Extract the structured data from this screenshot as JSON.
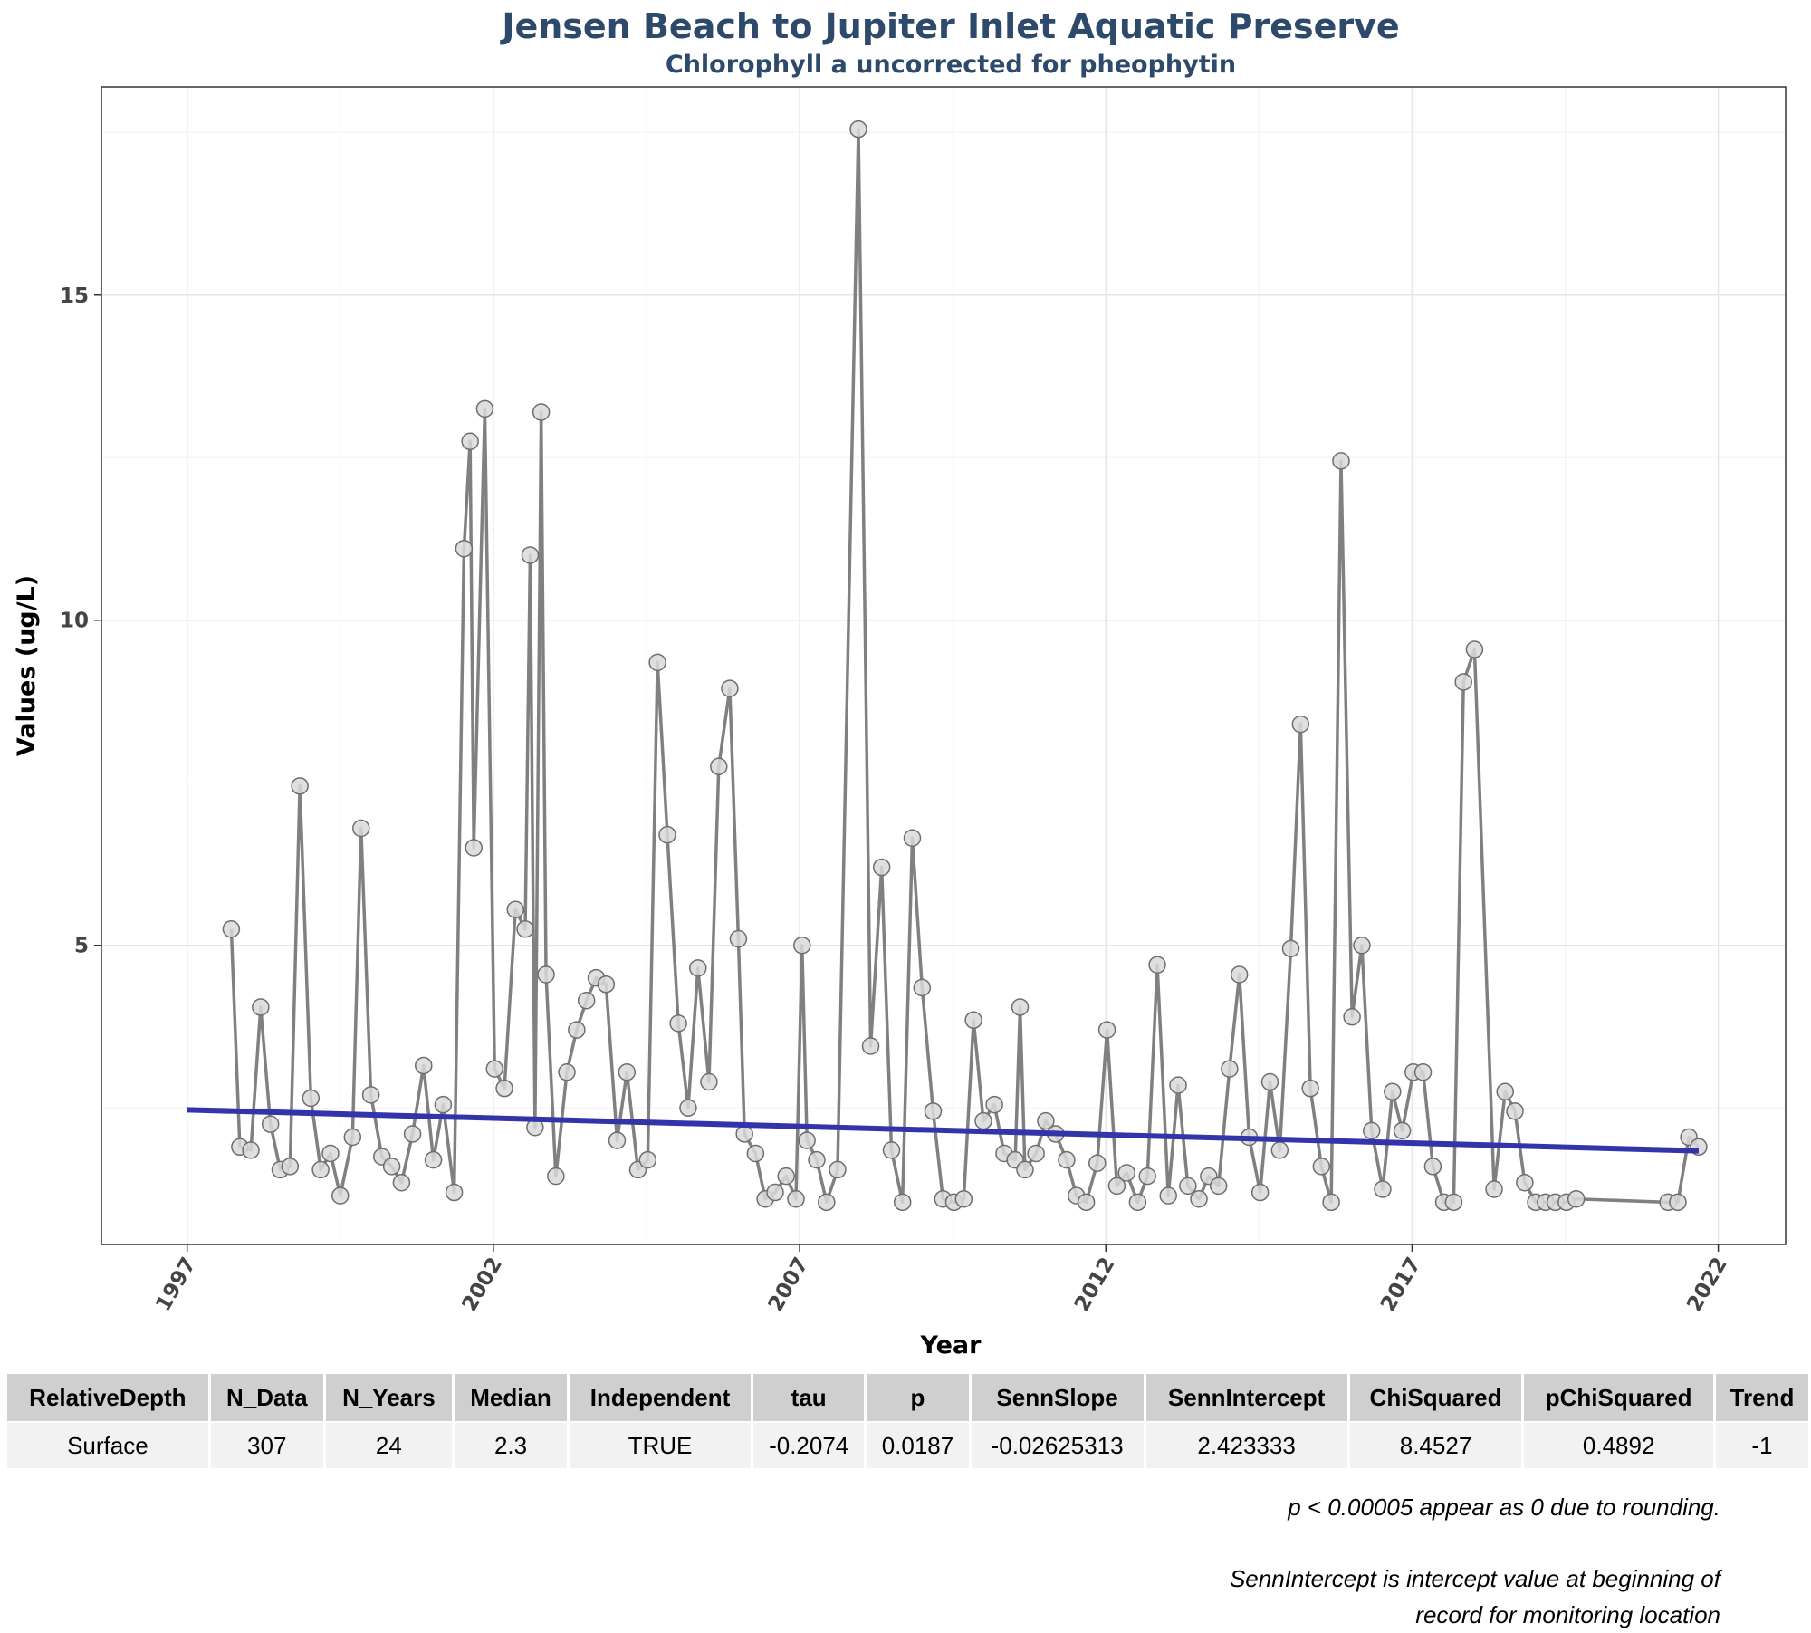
{
  "chart_data": {
    "type": "line",
    "title": "Jensen Beach to Jupiter Inlet Aquatic Preserve",
    "subtitle": "Chlorophyll a uncorrected for pheophytin",
    "xlabel": "Year",
    "ylabel": "Values (ug/L)",
    "xlim": [
      1995.6,
      2023.1
    ],
    "ylim": [
      0.4,
      18.2
    ],
    "x_ticks": [
      1997,
      2002,
      2007,
      2012,
      2017,
      2022
    ],
    "y_ticks": [
      5,
      10,
      15
    ],
    "grid": true,
    "legend": "none",
    "series": [
      {
        "type": "line-points",
        "color": "#808080",
        "point_fill": "#d9d9d9",
        "points": [
          [
            1997.72,
            5.25
          ],
          [
            1997.86,
            1.9
          ],
          [
            1998.04,
            1.85
          ],
          [
            1998.2,
            4.05
          ],
          [
            1998.36,
            2.25
          ],
          [
            1998.52,
            1.55
          ],
          [
            1998.68,
            1.6
          ],
          [
            1998.84,
            7.45
          ],
          [
            1999.02,
            2.65
          ],
          [
            1999.18,
            1.55
          ],
          [
            1999.34,
            1.8
          ],
          [
            1999.5,
            1.15
          ],
          [
            1999.7,
            2.05
          ],
          [
            1999.84,
            6.8
          ],
          [
            2000.0,
            2.7
          ],
          [
            2000.18,
            1.75
          ],
          [
            2000.34,
            1.6
          ],
          [
            2000.5,
            1.35
          ],
          [
            2000.68,
            2.1
          ],
          [
            2000.86,
            3.15
          ],
          [
            2001.02,
            1.7
          ],
          [
            2001.18,
            2.55
          ],
          [
            2001.36,
            1.2
          ],
          [
            2001.52,
            11.1
          ],
          [
            2001.62,
            12.75
          ],
          [
            2001.68,
            6.5
          ],
          [
            2001.86,
            13.25
          ],
          [
            2002.02,
            3.1
          ],
          [
            2002.18,
            2.8
          ],
          [
            2002.36,
            5.55
          ],
          [
            2002.52,
            5.25
          ],
          [
            2002.6,
            11.0
          ],
          [
            2002.68,
            2.2
          ],
          [
            2002.78,
            13.2
          ],
          [
            2002.86,
            4.55
          ],
          [
            2003.02,
            1.45
          ],
          [
            2003.2,
            3.05
          ],
          [
            2003.36,
            3.7
          ],
          [
            2003.52,
            4.15
          ],
          [
            2003.68,
            4.5
          ],
          [
            2003.84,
            4.4
          ],
          [
            2004.02,
            2.0
          ],
          [
            2004.18,
            3.05
          ],
          [
            2004.36,
            1.55
          ],
          [
            2004.52,
            1.7
          ],
          [
            2004.68,
            9.35
          ],
          [
            2004.84,
            6.7
          ],
          [
            2005.02,
            3.8
          ],
          [
            2005.18,
            2.5
          ],
          [
            2005.34,
            4.65
          ],
          [
            2005.52,
            2.9
          ],
          [
            2005.68,
            7.75
          ],
          [
            2005.86,
            8.95
          ],
          [
            2006.0,
            5.1
          ],
          [
            2006.1,
            2.1
          ],
          [
            2006.28,
            1.8
          ],
          [
            2006.44,
            1.1
          ],
          [
            2006.6,
            1.2
          ],
          [
            2006.78,
            1.45
          ],
          [
            2006.94,
            1.1
          ],
          [
            2007.04,
            5.0
          ],
          [
            2007.12,
            2.0
          ],
          [
            2007.28,
            1.7
          ],
          [
            2007.44,
            1.05
          ],
          [
            2007.62,
            1.55
          ],
          [
            2007.96,
            17.55
          ],
          [
            2008.16,
            3.45
          ],
          [
            2008.34,
            6.2
          ],
          [
            2008.5,
            1.85
          ],
          [
            2008.68,
            1.05
          ],
          [
            2008.84,
            6.65
          ],
          [
            2009.0,
            4.35
          ],
          [
            2009.18,
            2.45
          ],
          [
            2009.34,
            1.1
          ],
          [
            2009.52,
            1.05
          ],
          [
            2009.68,
            1.1
          ],
          [
            2009.84,
            3.85
          ],
          [
            2010.0,
            2.3
          ],
          [
            2010.18,
            2.55
          ],
          [
            2010.34,
            1.8
          ],
          [
            2010.52,
            1.7
          ],
          [
            2010.6,
            4.05
          ],
          [
            2010.68,
            1.55
          ],
          [
            2010.86,
            1.8
          ],
          [
            2011.02,
            2.3
          ],
          [
            2011.18,
            2.1
          ],
          [
            2011.36,
            1.7
          ],
          [
            2011.52,
            1.15
          ],
          [
            2011.68,
            1.05
          ],
          [
            2011.86,
            1.65
          ],
          [
            2012.02,
            3.7
          ],
          [
            2012.18,
            1.3
          ],
          [
            2012.34,
            1.5
          ],
          [
            2012.52,
            1.05
          ],
          [
            2012.68,
            1.45
          ],
          [
            2012.84,
            4.7
          ],
          [
            2013.02,
            1.15
          ],
          [
            2013.18,
            2.85
          ],
          [
            2013.34,
            1.3
          ],
          [
            2013.52,
            1.1
          ],
          [
            2013.68,
            1.45
          ],
          [
            2013.84,
            1.3
          ],
          [
            2014.02,
            3.1
          ],
          [
            2014.18,
            4.55
          ],
          [
            2014.34,
            2.05
          ],
          [
            2014.52,
            1.2
          ],
          [
            2014.68,
            2.9
          ],
          [
            2014.84,
            1.85
          ],
          [
            2015.02,
            4.95
          ],
          [
            2015.18,
            8.4
          ],
          [
            2015.34,
            2.8
          ],
          [
            2015.52,
            1.6
          ],
          [
            2015.68,
            1.05
          ],
          [
            2015.84,
            12.45
          ],
          [
            2016.02,
            3.9
          ],
          [
            2016.18,
            5.0
          ],
          [
            2016.34,
            2.15
          ],
          [
            2016.52,
            1.25
          ],
          [
            2016.68,
            2.75
          ],
          [
            2016.84,
            2.15
          ],
          [
            2017.02,
            3.05
          ],
          [
            2017.18,
            3.05
          ],
          [
            2017.34,
            1.6
          ],
          [
            2017.52,
            1.05
          ],
          [
            2017.68,
            1.05
          ],
          [
            2017.84,
            9.05
          ],
          [
            2018.02,
            9.55
          ],
          [
            2018.34,
            1.25
          ],
          [
            2018.52,
            2.75
          ],
          [
            2018.68,
            2.45
          ],
          [
            2018.84,
            1.35
          ],
          [
            2019.02,
            1.05
          ],
          [
            2019.18,
            1.05
          ],
          [
            2019.34,
            1.05
          ],
          [
            2019.52,
            1.05
          ],
          [
            2019.68,
            1.1
          ],
          [
            2021.18,
            1.05
          ],
          [
            2021.34,
            1.05
          ],
          [
            2021.52,
            2.05
          ],
          [
            2021.68,
            1.9
          ]
        ]
      },
      {
        "type": "trend-line",
        "color": "#3333aa",
        "points": [
          [
            1997.0,
            2.47
          ],
          [
            2021.68,
            1.84
          ]
        ]
      }
    ]
  },
  "table": {
    "headers": [
      "RelativeDepth",
      "N_Data",
      "N_Years",
      "Median",
      "Independent",
      "tau",
      "p",
      "SennSlope",
      "SennIntercept",
      "ChiSquared",
      "pChiSquared",
      "Trend"
    ],
    "rows": [
      [
        "Surface",
        "307",
        "24",
        "2.3",
        "TRUE",
        "-0.2074",
        "0.0187",
        "-0.02625313",
        "2.423333",
        "8.4527",
        "0.4892",
        "-1"
      ]
    ]
  },
  "notes": {
    "rounding": "p < 0.00005 appear as 0 due to rounding.",
    "intercept_line1": "SennIntercept is intercept value at beginning of",
    "intercept_line2": "record for monitoring location"
  }
}
